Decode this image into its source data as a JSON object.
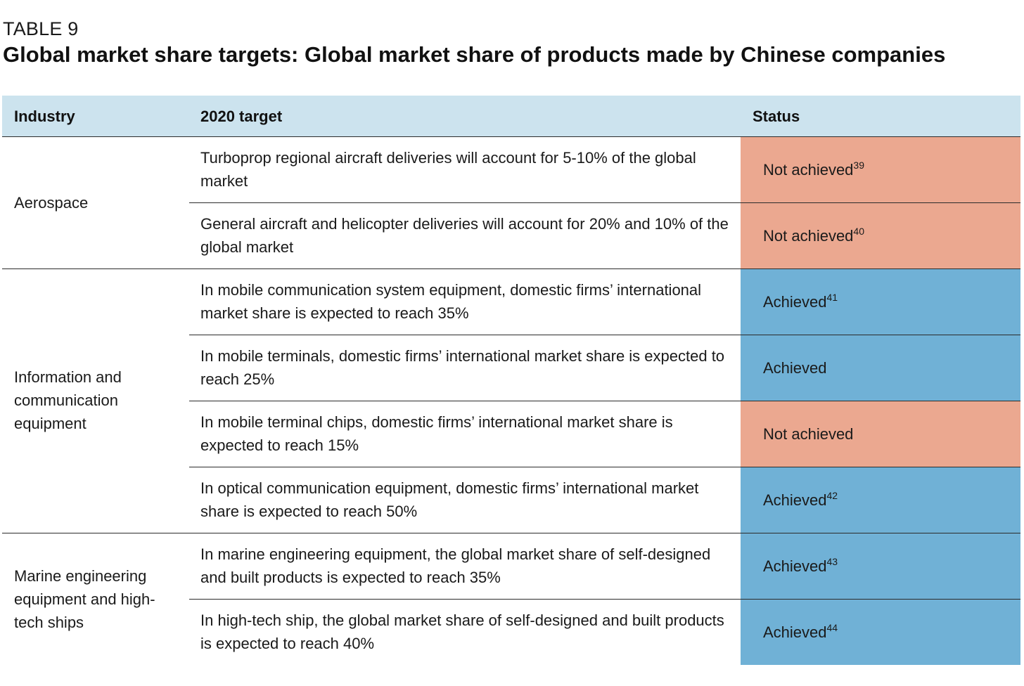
{
  "label": "TABLE 9",
  "title": "Global market share targets: Global market share of products made by Chinese companies",
  "headers": {
    "industry": "Industry",
    "target": "2020 target",
    "status": "Status"
  },
  "groups": [
    {
      "industry": "Aerospace",
      "rows": [
        {
          "target": "Turboprop regional aircraft deliveries will account for 5-10% of the global market",
          "status": "Not achieved",
          "note": "39",
          "achieved": false
        },
        {
          "target": "General aircraft and helicopter deliveries will account for 20% and 10% of the global market",
          "status": "Not achieved",
          "note": "40",
          "achieved": false
        }
      ]
    },
    {
      "industry": "Information and communication equipment",
      "rows": [
        {
          "target": "In mobile communication system equipment, domestic firms’ international market share is expected to reach 35%",
          "status": "Achieved",
          "note": "41",
          "achieved": true
        },
        {
          "target": "In mobile terminals, domestic firms’ international market share is expected to reach 25%",
          "status": "Achieved",
          "note": "",
          "achieved": true
        },
        {
          "target": "In mobile terminal chips, domestic firms’ international market share is expected to reach 15%",
          "status": "Not achieved",
          "note": "",
          "achieved": false
        },
        {
          "target": "In optical communication equipment, domestic firms’ international market share is expected to reach 50%",
          "status": "Achieved",
          "note": "42",
          "achieved": true
        }
      ]
    },
    {
      "industry": "Marine engineering equipment and high-tech ships",
      "rows": [
        {
          "target": "In marine engineering equipment, the global market share of self-designed and built products is expected to reach 35%",
          "status": "Achieved",
          "note": "43",
          "achieved": true
        },
        {
          "target": "In high-tech ship, the global market share of self-designed and built products is expected to reach 40%",
          "status": "Achieved",
          "note": "44",
          "achieved": true
        }
      ]
    }
  ],
  "colors": {
    "header_bg": "#cce3ee",
    "not_achieved": "#eba890",
    "achieved": "#70b1d6"
  }
}
